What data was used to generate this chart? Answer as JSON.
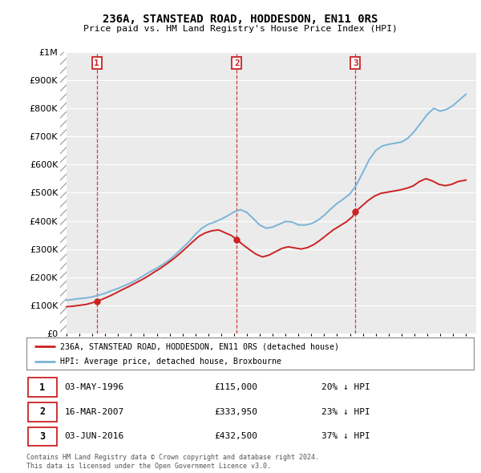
{
  "title": "236A, STANSTEAD ROAD, HODDESDON, EN11 0RS",
  "subtitle": "Price paid vs. HM Land Registry's House Price Index (HPI)",
  "legend_line1": "236A, STANSTEAD ROAD, HODDESDON, EN11 0RS (detached house)",
  "legend_line2": "HPI: Average price, detached house, Broxbourne",
  "sales": [
    {
      "num": 1,
      "date": "03-MAY-1996",
      "price": 115000,
      "year": 1996.35,
      "hpi_pct": "20% ↓ HPI"
    },
    {
      "num": 2,
      "date": "16-MAR-2007",
      "price": 333950,
      "year": 2007.21,
      "hpi_pct": "23% ↓ HPI"
    },
    {
      "num": 3,
      "date": "03-JUN-2016",
      "price": 432500,
      "year": 2016.42,
      "hpi_pct": "37% ↓ HPI"
    }
  ],
  "footnote1": "Contains HM Land Registry data © Crown copyright and database right 2024.",
  "footnote2": "This data is licensed under the Open Government Licence v3.0.",
  "hpi_color": "#7ab4d8",
  "price_color": "#cc2222",
  "vline_color": "#cc2222",
  "background_color": "#ffffff",
  "plot_bg_color": "#ebebeb",
  "ylim": [
    0,
    1000000
  ],
  "xlim_start": 1993.5,
  "xlim_end": 2025.8,
  "hpi_data_years": [
    1994,
    1994.5,
    1995,
    1995.5,
    1996,
    1996.5,
    1997,
    1997.5,
    1998,
    1998.5,
    1999,
    1999.5,
    2000,
    2000.5,
    2001,
    2001.5,
    2002,
    2002.5,
    2003,
    2003.5,
    2004,
    2004.5,
    2005,
    2005.5,
    2006,
    2006.5,
    2007,
    2007.5,
    2008,
    2008.5,
    2009,
    2009.5,
    2010,
    2010.5,
    2011,
    2011.5,
    2012,
    2012.5,
    2013,
    2013.5,
    2014,
    2014.5,
    2015,
    2015.5,
    2016,
    2016.5,
    2017,
    2017.5,
    2018,
    2018.5,
    2019,
    2019.5,
    2020,
    2020.5,
    2021,
    2021.5,
    2022,
    2022.5,
    2023,
    2023.5,
    2024,
    2024.5,
    2025
  ],
  "hpi_data_values": [
    118000,
    121000,
    124000,
    126000,
    130000,
    136000,
    143000,
    152000,
    160000,
    170000,
    180000,
    192000,
    206000,
    220000,
    232000,
    246000,
    262000,
    282000,
    304000,
    326000,
    352000,
    374000,
    388000,
    396000,
    406000,
    418000,
    432000,
    440000,
    430000,
    408000,
    385000,
    374000,
    378000,
    388000,
    398000,
    396000,
    386000,
    385000,
    390000,
    402000,
    420000,
    442000,
    462000,
    478000,
    496000,
    528000,
    572000,
    618000,
    650000,
    666000,
    672000,
    676000,
    680000,
    694000,
    718000,
    748000,
    778000,
    800000,
    790000,
    796000,
    810000,
    830000,
    850000
  ],
  "price_data_years": [
    1994,
    1994.5,
    1995,
    1995.5,
    1996,
    1996.35,
    1996.8,
    1997.3,
    1997.8,
    1998.3,
    1998.8,
    1999.3,
    1999.8,
    2000.3,
    2000.8,
    2001.3,
    2001.8,
    2002.3,
    2002.8,
    2003.3,
    2003.8,
    2004.3,
    2004.8,
    2005.3,
    2005.8,
    2006.3,
    2006.8,
    2007.21,
    2007.7,
    2008.2,
    2008.7,
    2009.2,
    2009.7,
    2010.2,
    2010.7,
    2011.2,
    2011.7,
    2012.2,
    2012.7,
    2013.2,
    2013.7,
    2014.2,
    2014.7,
    2015.2,
    2015.7,
    2016.2,
    2016.42,
    2016.9,
    2017.4,
    2017.9,
    2018.4,
    2018.9,
    2019.4,
    2019.9,
    2020.4,
    2020.9,
    2021.4,
    2021.9,
    2022.4,
    2022.9,
    2023.4,
    2023.9,
    2024.4,
    2025
  ],
  "price_data_values": [
    95000,
    97000,
    100000,
    103000,
    109000,
    115000,
    122000,
    132000,
    143000,
    155000,
    166000,
    178000,
    190000,
    203000,
    218000,
    232000,
    248000,
    265000,
    284000,
    305000,
    326000,
    346000,
    358000,
    365000,
    368000,
    358000,
    348000,
    333950,
    315000,
    298000,
    282000,
    272000,
    278000,
    290000,
    302000,
    308000,
    304000,
    300000,
    305000,
    316000,
    332000,
    350000,
    368000,
    382000,
    396000,
    415000,
    432500,
    452000,
    472000,
    488000,
    498000,
    502000,
    506000,
    510000,
    516000,
    524000,
    540000,
    550000,
    542000,
    530000,
    525000,
    530000,
    540000,
    545000
  ]
}
